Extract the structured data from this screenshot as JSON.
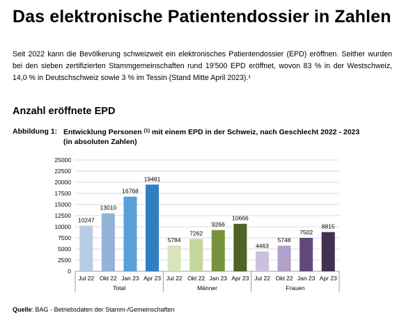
{
  "page": {
    "title": "Das elektronische Patientendossier in Zahlen",
    "intro": "Seit 2022 kann die Bevölkerung schweizweit ein elektronisches Patientendossier (EPD) eröffnen. Seither wurden bei den sieben zertifizierten Stammgemeinschaften rund 19'500 EPD eröffnet, wovon 83 % in der Westschweiz, 14,0 % in Deutschschweiz sowie 3 % im Tessin (Stand Mitte April 2023).¹",
    "section_heading": "Anzahl eröffnete EPD",
    "figure_label": "Abbildung 1:",
    "figure_caption_a": "Entwicklung Personen ",
    "figure_caption_sup": "(1)",
    "figure_caption_b": " mit einem EPD in der Schweiz, nach Geschlecht 2022 - 2023",
    "figure_caption_c": "(in absoluten Zahlen)",
    "source_label": "Quelle",
    "source_text": ": BAG - Betriebsdaten der Stamm-/Gemeinschaften"
  },
  "chart_data": {
    "type": "bar",
    "ylim": [
      0,
      25000
    ],
    "yticks": [
      "0",
      "2500",
      "5000",
      "7500",
      "10000",
      "12500",
      "15000",
      "17500",
      "20000",
      "22500",
      "25000"
    ],
    "grid": true,
    "groups": [
      {
        "name": "Total",
        "categories": [
          "Jul 22",
          "Okt 22",
          "Jan 23",
          "Apr 23"
        ],
        "values": [
          10247,
          13010,
          16768,
          19481
        ],
        "colors": [
          "#b8cce4",
          "#95b3d7",
          "#5a9fd8",
          "#2f7fc3"
        ]
      },
      {
        "name": "Männer",
        "categories": [
          "Jul 22",
          "Okt 22",
          "Jan 23",
          "Apr 23"
        ],
        "values": [
          5784,
          7262,
          9266,
          10666
        ],
        "colors": [
          "#d8e4bc",
          "#c4d79b",
          "#77933c",
          "#4f6228"
        ]
      },
      {
        "name": "Frauen",
        "categories": [
          "Jul 22",
          "Okt 22",
          "Jan 23",
          "Apr 23"
        ],
        "values": [
          4463,
          5748,
          7502,
          8815
        ],
        "colors": [
          "#ccc0da",
          "#b1a0c7",
          "#60497a",
          "#403151"
        ]
      }
    ]
  }
}
